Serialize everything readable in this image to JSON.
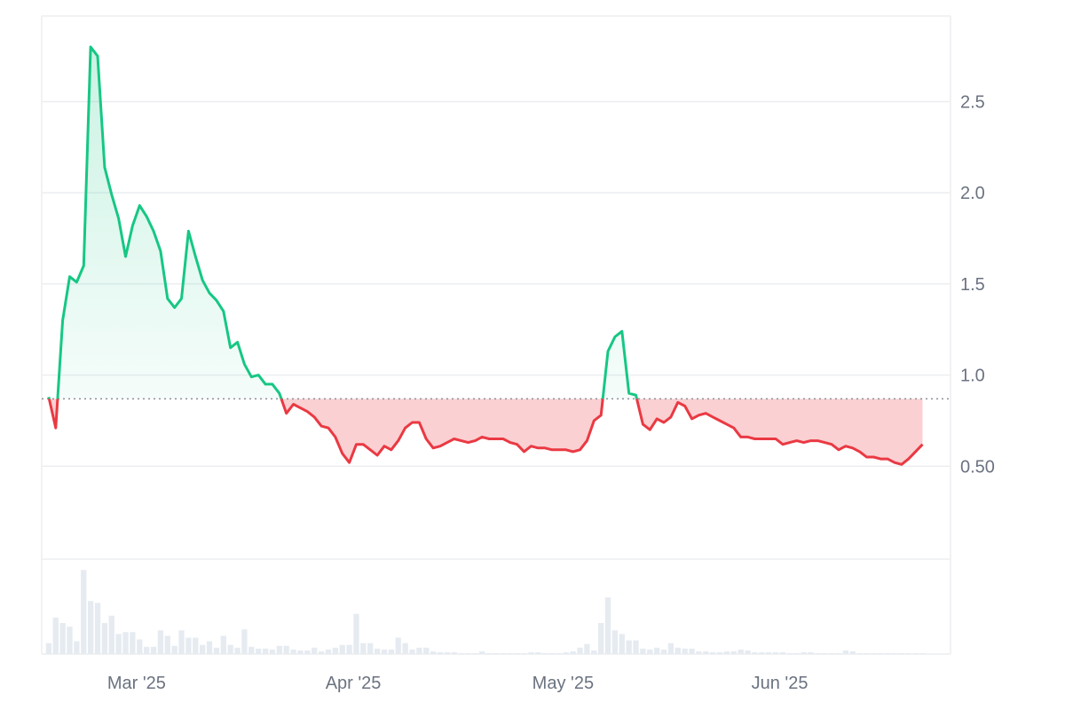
{
  "chart_data": {
    "type": "line",
    "title": "",
    "xlabel": "",
    "ylabel": "",
    "baseline": 0.87,
    "ylim": [
      0.0,
      2.97
    ],
    "y_ticks": [
      {
        "value": 0.5,
        "label": "0.50"
      },
      {
        "value": 1.0,
        "label": "1.0"
      },
      {
        "value": 1.5,
        "label": "1.5"
      },
      {
        "value": 2.0,
        "label": "2.0"
      },
      {
        "value": 2.5,
        "label": "2.5"
      }
    ],
    "x_range": [
      "2025-02-20",
      "2025-06-30"
    ],
    "x_ticks": [
      {
        "date": "2025-03-01",
        "label": "Mar '25"
      },
      {
        "date": "2025-04-01",
        "label": "Apr '25"
      },
      {
        "date": "2025-05-01",
        "label": "May '25"
      },
      {
        "date": "2025-06-01",
        "label": "Jun '25"
      }
    ],
    "grid": true,
    "legend": "none",
    "colors": {
      "above": "#16c784",
      "below": "#ea3943",
      "above_fill": "#16c784",
      "below_fill": "#ea3943",
      "grid": "#eceef1",
      "baseline": "#8a8f98",
      "volume": "#e6ebf1"
    },
    "series": [
      {
        "values": [
          [
            "2025-02-21",
            0.88
          ],
          [
            "2025-02-22",
            0.71
          ],
          [
            "2025-02-23",
            1.3
          ],
          [
            "2025-02-24",
            1.54
          ],
          [
            "2025-02-25",
            1.51
          ],
          [
            "2025-02-26",
            1.6
          ],
          [
            "2025-02-27",
            2.8
          ],
          [
            "2025-02-28",
            2.75
          ],
          [
            "2025-03-01",
            2.14
          ],
          [
            "2025-03-02",
            1.99
          ],
          [
            "2025-03-03",
            1.86
          ],
          [
            "2025-03-04",
            1.65
          ],
          [
            "2025-03-05",
            1.82
          ],
          [
            "2025-03-06",
            1.93
          ],
          [
            "2025-03-07",
            1.87
          ],
          [
            "2025-03-08",
            1.79
          ],
          [
            "2025-03-09",
            1.68
          ],
          [
            "2025-03-10",
            1.42
          ],
          [
            "2025-03-11",
            1.37
          ],
          [
            "2025-03-12",
            1.42
          ],
          [
            "2025-03-13",
            1.79
          ],
          [
            "2025-03-14",
            1.65
          ],
          [
            "2025-03-15",
            1.52
          ],
          [
            "2025-03-16",
            1.45
          ],
          [
            "2025-03-17",
            1.41
          ],
          [
            "2025-03-18",
            1.35
          ],
          [
            "2025-03-19",
            1.15
          ],
          [
            "2025-03-20",
            1.18
          ],
          [
            "2025-03-21",
            1.06
          ],
          [
            "2025-03-22",
            0.99
          ],
          [
            "2025-03-23",
            1.0
          ],
          [
            "2025-03-24",
            0.95
          ],
          [
            "2025-03-25",
            0.95
          ],
          [
            "2025-03-26",
            0.9
          ],
          [
            "2025-03-27",
            0.79
          ],
          [
            "2025-03-28",
            0.84
          ],
          [
            "2025-03-29",
            0.82
          ],
          [
            "2025-03-30",
            0.8
          ],
          [
            "2025-03-31",
            0.77
          ],
          [
            "2025-04-01",
            0.72
          ],
          [
            "2025-04-02",
            0.71
          ],
          [
            "2025-04-03",
            0.66
          ],
          [
            "2025-04-04",
            0.57
          ],
          [
            "2025-04-05",
            0.52
          ],
          [
            "2025-04-06",
            0.62
          ],
          [
            "2025-04-07",
            0.62
          ],
          [
            "2025-04-08",
            0.59
          ],
          [
            "2025-04-09",
            0.56
          ],
          [
            "2025-04-10",
            0.61
          ],
          [
            "2025-04-11",
            0.59
          ],
          [
            "2025-04-12",
            0.64
          ],
          [
            "2025-04-13",
            0.71
          ],
          [
            "2025-04-14",
            0.74
          ],
          [
            "2025-04-15",
            0.74
          ],
          [
            "2025-04-16",
            0.65
          ],
          [
            "2025-04-17",
            0.6
          ],
          [
            "2025-04-18",
            0.61
          ],
          [
            "2025-04-19",
            0.63
          ],
          [
            "2025-04-20",
            0.65
          ],
          [
            "2025-04-21",
            0.64
          ],
          [
            "2025-04-22",
            0.63
          ],
          [
            "2025-04-23",
            0.64
          ],
          [
            "2025-04-24",
            0.66
          ],
          [
            "2025-04-25",
            0.65
          ],
          [
            "2025-04-26",
            0.65
          ],
          [
            "2025-04-27",
            0.65
          ],
          [
            "2025-04-28",
            0.63
          ],
          [
            "2025-04-29",
            0.62
          ],
          [
            "2025-04-30",
            0.58
          ],
          [
            "2025-05-01",
            0.61
          ],
          [
            "2025-05-02",
            0.6
          ],
          [
            "2025-05-03",
            0.6
          ],
          [
            "2025-05-04",
            0.59
          ],
          [
            "2025-05-05",
            0.59
          ],
          [
            "2025-05-06",
            0.59
          ],
          [
            "2025-05-07",
            0.58
          ],
          [
            "2025-05-08",
            0.59
          ],
          [
            "2025-05-09",
            0.64
          ],
          [
            "2025-05-10",
            0.75
          ],
          [
            "2025-05-11",
            0.78
          ],
          [
            "2025-05-12",
            1.13
          ],
          [
            "2025-05-13",
            1.21
          ],
          [
            "2025-05-14",
            1.24
          ],
          [
            "2025-05-15",
            0.9
          ],
          [
            "2025-05-16",
            0.89
          ],
          [
            "2025-05-17",
            0.73
          ],
          [
            "2025-05-18",
            0.7
          ],
          [
            "2025-05-19",
            0.76
          ],
          [
            "2025-05-20",
            0.74
          ],
          [
            "2025-05-21",
            0.77
          ],
          [
            "2025-05-22",
            0.85
          ],
          [
            "2025-05-23",
            0.83
          ],
          [
            "2025-05-24",
            0.76
          ],
          [
            "2025-05-25",
            0.78
          ],
          [
            "2025-05-26",
            0.79
          ],
          [
            "2025-05-27",
            0.77
          ],
          [
            "2025-05-28",
            0.75
          ],
          [
            "2025-05-29",
            0.73
          ],
          [
            "2025-05-30",
            0.71
          ],
          [
            "2025-05-31",
            0.66
          ],
          [
            "2025-06-01",
            0.66
          ],
          [
            "2025-06-02",
            0.65
          ],
          [
            "2025-06-03",
            0.65
          ],
          [
            "2025-06-04",
            0.65
          ],
          [
            "2025-06-05",
            0.65
          ],
          [
            "2025-06-06",
            0.62
          ],
          [
            "2025-06-07",
            0.63
          ],
          [
            "2025-06-08",
            0.64
          ],
          [
            "2025-06-09",
            0.63
          ],
          [
            "2025-06-10",
            0.64
          ],
          [
            "2025-06-11",
            0.64
          ],
          [
            "2025-06-12",
            0.63
          ],
          [
            "2025-06-13",
            0.62
          ],
          [
            "2025-06-14",
            0.59
          ],
          [
            "2025-06-15",
            0.61
          ],
          [
            "2025-06-16",
            0.6
          ],
          [
            "2025-06-17",
            0.58
          ],
          [
            "2025-06-18",
            0.55
          ],
          [
            "2025-06-19",
            0.55
          ],
          [
            "2025-06-20",
            0.54
          ],
          [
            "2025-06-21",
            0.54
          ],
          [
            "2025-06-22",
            0.52
          ],
          [
            "2025-06-23",
            0.51
          ],
          [
            "2025-06-24",
            0.54
          ],
          [
            "2025-06-25",
            0.58
          ],
          [
            "2025-06-26",
            0.62
          ]
        ]
      }
    ],
    "volume": {
      "relative": true,
      "values": [
        0.12,
        0.4,
        0.34,
        0.3,
        0.14,
        0.92,
        0.58,
        0.56,
        0.34,
        0.42,
        0.22,
        0.24,
        0.24,
        0.16,
        0.08,
        0.08,
        0.26,
        0.2,
        0.09,
        0.26,
        0.18,
        0.18,
        0.1,
        0.14,
        0.07,
        0.2,
        0.1,
        0.07,
        0.27,
        0.08,
        0.06,
        0.06,
        0.05,
        0.09,
        0.09,
        0.05,
        0.04,
        0.04,
        0.07,
        0.03,
        0.05,
        0.07,
        0.1,
        0.1,
        0.44,
        0.12,
        0.12,
        0.06,
        0.05,
        0.05,
        0.18,
        0.12,
        0.05,
        0.07,
        0.07,
        0.03,
        0.02,
        0.02,
        0.02,
        0.01,
        0.01,
        0.01,
        0.03,
        0.01,
        0.01,
        0.01,
        0.01,
        0.01,
        0.01,
        0.02,
        0.02,
        0.01,
        0.01,
        0.01,
        0.02,
        0.03,
        0.07,
        0.11,
        0.04,
        0.34,
        0.62,
        0.26,
        0.22,
        0.15,
        0.15,
        0.06,
        0.05,
        0.07,
        0.05,
        0.12,
        0.07,
        0.06,
        0.06,
        0.03,
        0.03,
        0.02,
        0.02,
        0.03,
        0.03,
        0.05,
        0.04,
        0.02,
        0.02,
        0.02,
        0.02,
        0.02,
        0.01,
        0.01,
        0.02,
        0.02,
        0.01,
        0.01,
        0.01,
        0.01,
        0.04,
        0.03,
        0.01,
        0.01,
        0.01,
        0.01,
        0.01,
        0.01,
        0.01,
        0.01,
        0.01,
        0.01
      ]
    }
  }
}
